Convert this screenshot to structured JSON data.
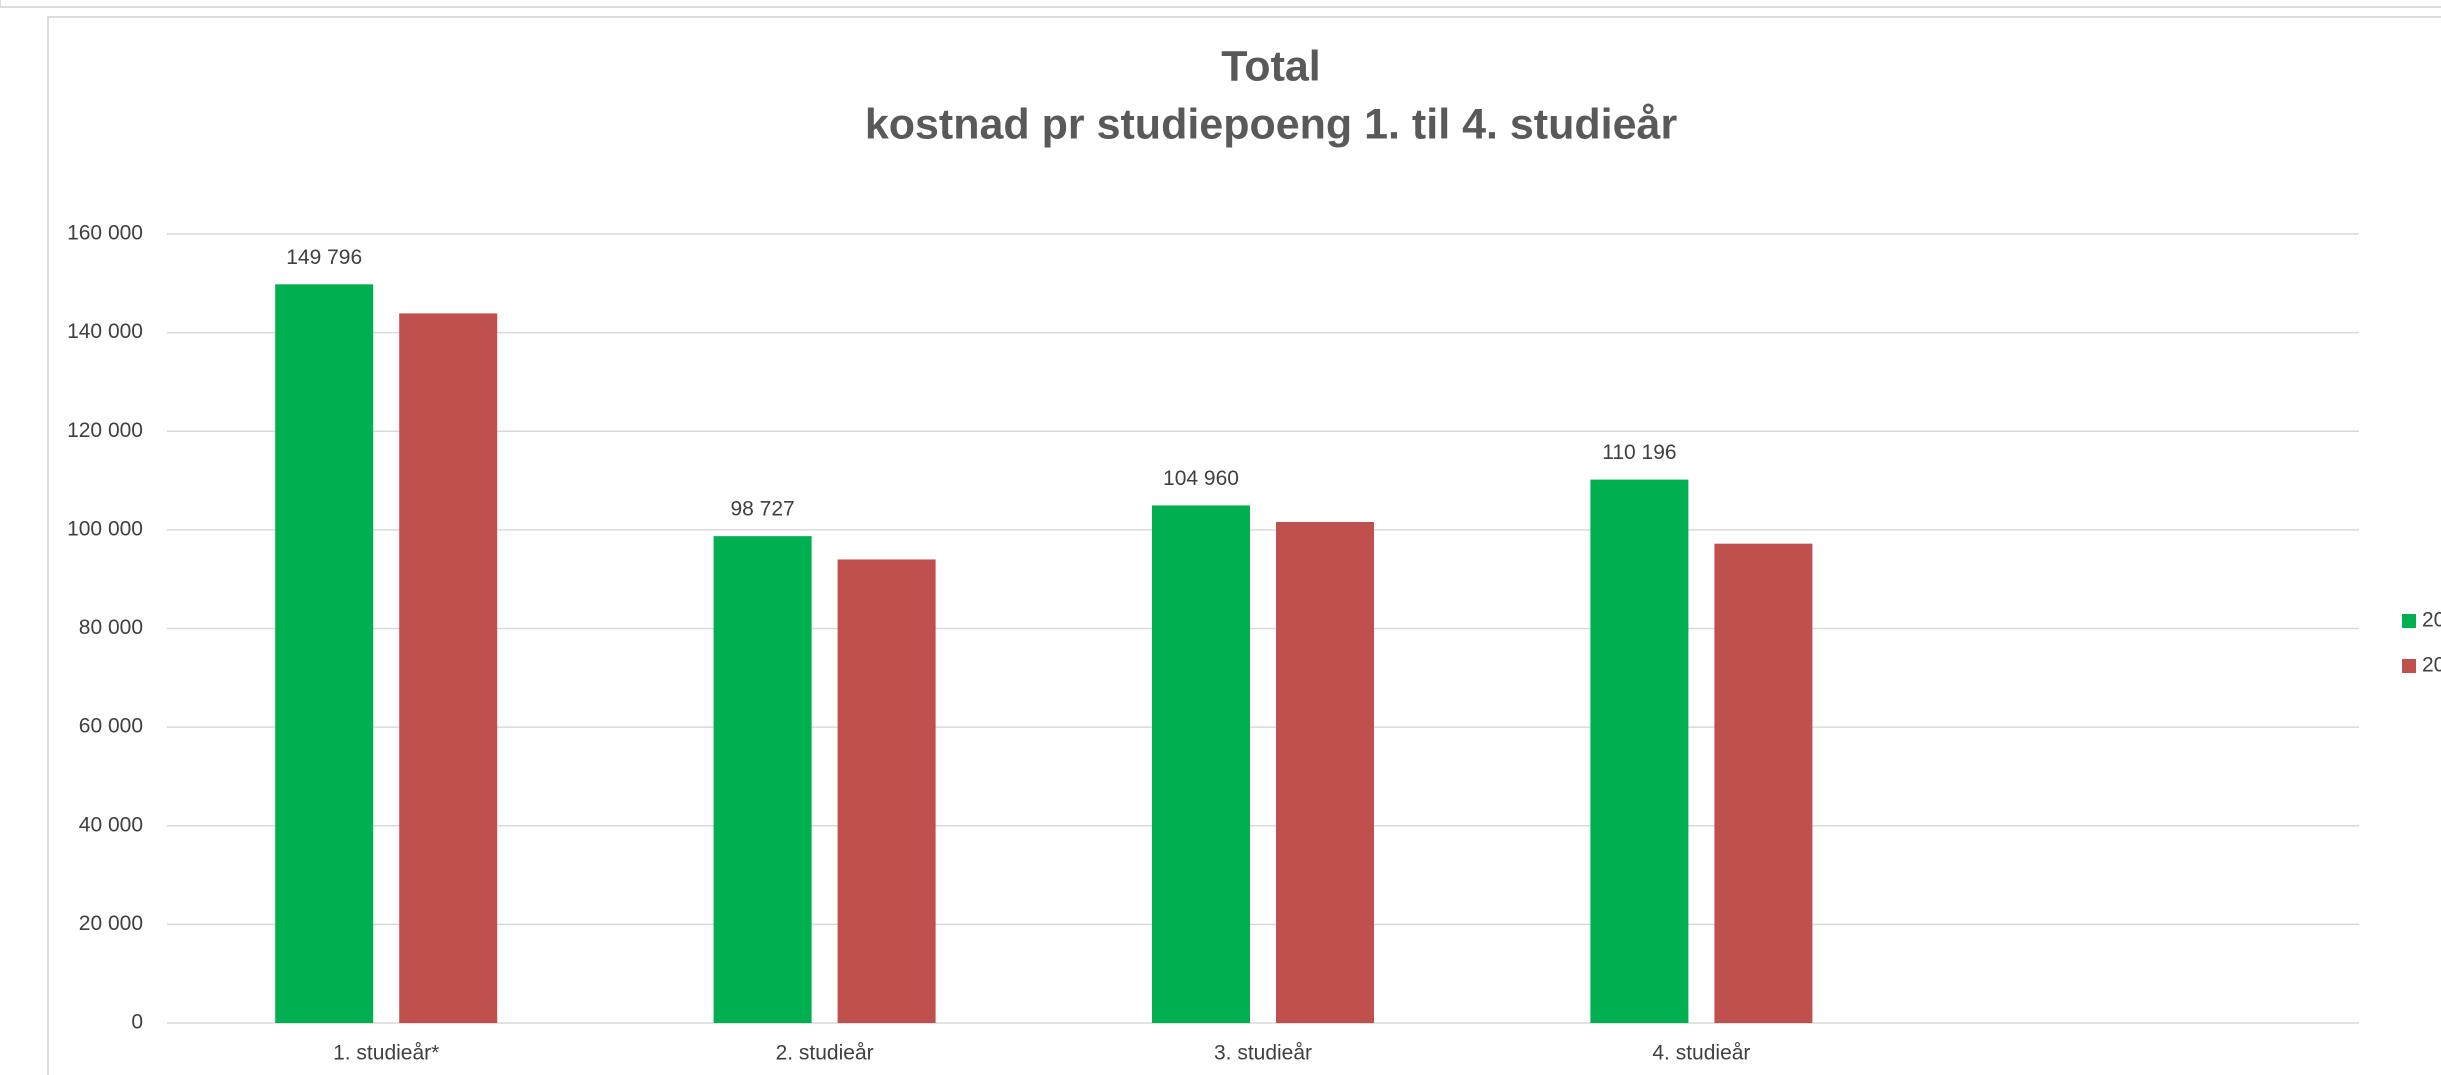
{
  "chart_data": {
    "type": "bar",
    "title": "Total",
    "subtitle": "kostnad pr studiepoeng  1. til 4. studieår",
    "categories": [
      "1. studieår*",
      "2. studieår",
      "3. studieår",
      "4. studieår",
      null
    ],
    "series": [
      {
        "name": "20",
        "color": "#00b050",
        "values": [
          149796,
          98727,
          104960,
          110196,
          null
        ],
        "value_labels": [
          "149 796",
          "98 727",
          "104 960",
          "110 196",
          null
        ]
      },
      {
        "name": "20",
        "color": "#c0504d",
        "values": [
          143900,
          94000,
          101600,
          97200,
          null
        ]
      }
    ],
    "ylim": [
      0,
      160000
    ],
    "yticks": [
      0,
      {
        "value": 20000,
        "label": "20 000"
      },
      {
        "value": 40000,
        "label": "40 000"
      },
      {
        "value": 60000,
        "label": "60 000"
      },
      {
        "value": 80000,
        "label": "80 000"
      },
      {
        "value": 100000,
        "label": "100 000"
      },
      {
        "value": 120000,
        "label": "120 000"
      },
      {
        "value": 140000,
        "label": "140 000"
      },
      {
        "value": 160000,
        "label": "160 000"
      }
    ],
    "grid": true,
    "legend": "right"
  }
}
